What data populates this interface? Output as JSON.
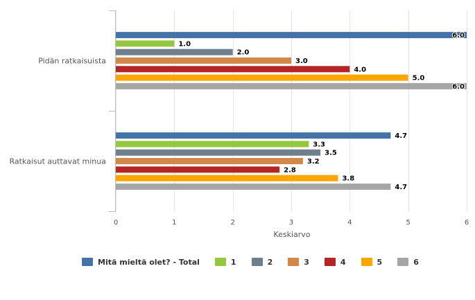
{
  "chart_data": {
    "type": "bar",
    "orientation": "horizontal",
    "categories": [
      "Pidän ratkaisuista",
      "Ratkaisut auttavat minua"
    ],
    "xlabel": "Keskiarvo",
    "xlim": [
      0,
      6
    ],
    "xticks": [
      "0",
      "1",
      "2",
      "3",
      "4",
      "5",
      "6"
    ],
    "grid": true,
    "legend_position": "bottom",
    "series": [
      {
        "name": "Mitä mieltä olet? - Total",
        "color": "#4572a7",
        "values": [
          6.0,
          4.7
        ],
        "labels": [
          "6.0",
          "4.7"
        ]
      },
      {
        "name": "1",
        "color": "#93c83e",
        "values": [
          1.0,
          3.3
        ],
        "labels": [
          "1.0",
          "3.3"
        ]
      },
      {
        "name": "2",
        "color": "#6f7f8c",
        "values": [
          2.0,
          3.5
        ],
        "labels": [
          "2.0",
          "3.5"
        ]
      },
      {
        "name": "3",
        "color": "#d1884a",
        "values": [
          3.0,
          3.2
        ],
        "labels": [
          "3.0",
          "3.2"
        ]
      },
      {
        "name": "4",
        "color": "#b52525",
        "values": [
          4.0,
          2.8
        ],
        "labels": [
          "4.0",
          "2.8"
        ]
      },
      {
        "name": "5",
        "color": "#ffa500",
        "values": [
          5.0,
          3.8
        ],
        "labels": [
          "5.0",
          "3.8"
        ]
      },
      {
        "name": "6",
        "color": "#a6a6a6",
        "values": [
          6.0,
          4.7
        ],
        "labels": [
          "6.0",
          "4.7"
        ]
      }
    ]
  }
}
